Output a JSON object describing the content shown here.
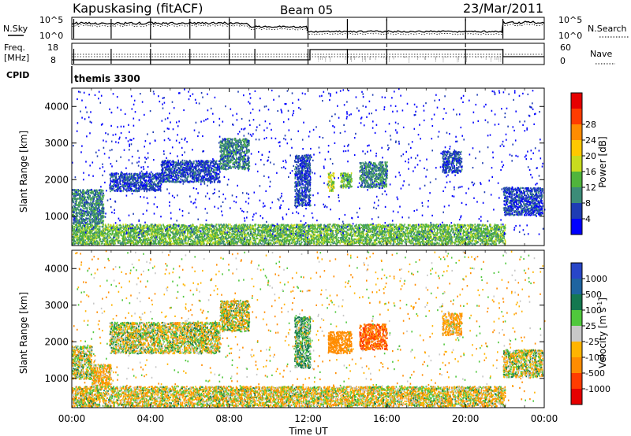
{
  "header": {
    "station": "Kapuskasing (fitACF)",
    "beam": "Beam 05",
    "date": "23/Mar/2011"
  },
  "time_axis": {
    "label": "Time UT",
    "ticks": [
      "00:00",
      "04:00",
      "08:00",
      "12:00",
      "16:00",
      "20:00",
      "00:00"
    ]
  },
  "top_panels": {
    "nsky_label": "N.Sky",
    "nsearch_label": "N.Search",
    "noise_ticks_left": [
      "10^5",
      "10^0"
    ],
    "noise_ticks_right": [
      "10^5",
      "10^0"
    ],
    "freq_label_1": "Freq.",
    "freq_label_2": "[MHz]",
    "freq_ticks": [
      "18",
      "8"
    ],
    "nave_label": "Nave",
    "nave_ticks": [
      "60",
      "0"
    ],
    "cpid_label": "CPID",
    "cpid_value": "themis 3300"
  },
  "chart_data": [
    {
      "type": "heatmap",
      "name": "Power",
      "ylabel": "Slant Range [km]",
      "xlabel": "",
      "yticks": [
        "1000",
        "2000",
        "3000",
        "4000"
      ],
      "ylim": [
        200,
        4500
      ],
      "xlim_hours": [
        0,
        24
      ],
      "colorbar": {
        "label": "Power [dB]",
        "ticks": [
          "4",
          "8",
          "12",
          "16",
          "20",
          "24",
          "28"
        ],
        "colors": [
          "#0000ff",
          "#1e3cb4",
          "#3c8c78",
          "#50b43c",
          "#c8dc1e",
          "#ffc800",
          "#ff8c00",
          "#ff3c00",
          "#e60000"
        ]
      },
      "scatter_regions": [
        {
          "t": [
            0.0,
            1.6
          ],
          "r": [
            800,
            1750
          ],
          "power": 12
        },
        {
          "t": [
            0.0,
            22.0
          ],
          "r": [
            250,
            800
          ],
          "power": 14
        },
        {
          "t": [
            1.9,
            4.5
          ],
          "r": [
            1700,
            2200
          ],
          "power": 8
        },
        {
          "t": [
            4.5,
            7.5
          ],
          "r": [
            1950,
            2550
          ],
          "power": 8
        },
        {
          "t": [
            7.5,
            9.0
          ],
          "r": [
            2300,
            3150
          ],
          "power": 10
        },
        {
          "t": [
            11.3,
            12.1
          ],
          "r": [
            1300,
            2700
          ],
          "power": 9
        },
        {
          "t": [
            13.0,
            13.3
          ],
          "r": [
            1700,
            2200
          ],
          "power": 18
        },
        {
          "t": [
            13.6,
            14.2
          ],
          "r": [
            1800,
            2200
          ],
          "power": 14
        },
        {
          "t": [
            14.6,
            16.0
          ],
          "r": [
            1800,
            2500
          ],
          "power": 12
        },
        {
          "t": [
            18.8,
            19.8
          ],
          "r": [
            2200,
            2800
          ],
          "power": 6
        },
        {
          "t": [
            21.9,
            23.9
          ],
          "r": [
            1050,
            1800
          ],
          "power": 8
        },
        {
          "t": [
            0.0,
            24.0
          ],
          "r": [
            400,
            4500
          ],
          "power": 5
        }
      ]
    },
    {
      "type": "heatmap",
      "name": "Velocity",
      "ylabel": "Slant Range [km]",
      "xlabel": "Time UT",
      "yticks": [
        "1000",
        "2000",
        "3000",
        "4000"
      ],
      "ylim": [
        200,
        4500
      ],
      "xlim_hours": [
        0,
        24
      ],
      "colorbar": {
        "label": "Velocity [m s^-1]",
        "ticks": [
          "1000",
          "500",
          "100",
          "25",
          "-25",
          "-100",
          "-500",
          "-1000"
        ],
        "colors": [
          "#2846c8",
          "#1e64a0",
          "#147850",
          "#50c83c",
          "#c8c8c8",
          "#ffb400",
          "#ff8c00",
          "#ff3c00",
          "#e60000"
        ]
      },
      "scatter_regions": [
        {
          "t": [
            0.0,
            1.0
          ],
          "r": [
            1000,
            1900
          ],
          "velocity": 0
        },
        {
          "t": [
            1.0,
            2.0
          ],
          "r": [
            800,
            1400
          ],
          "velocity": -100
        },
        {
          "t": [
            0.0,
            22.0
          ],
          "r": [
            250,
            800
          ],
          "velocity": -25
        },
        {
          "t": [
            1.9,
            7.5
          ],
          "r": [
            1700,
            2550
          ],
          "velocity": 0
        },
        {
          "t": [
            7.5,
            9.0
          ],
          "r": [
            2300,
            3150
          ],
          "velocity": 0
        },
        {
          "t": [
            11.3,
            12.1
          ],
          "r": [
            1300,
            2700
          ],
          "velocity": 100
        },
        {
          "t": [
            13.0,
            14.2
          ],
          "r": [
            1700,
            2300
          ],
          "velocity": -300
        },
        {
          "t": [
            14.6,
            16.0
          ],
          "r": [
            1800,
            2500
          ],
          "velocity": -500
        },
        {
          "t": [
            18.8,
            19.8
          ],
          "r": [
            2200,
            2800
          ],
          "velocity": -100
        },
        {
          "t": [
            21.9,
            23.9
          ],
          "r": [
            1050,
            1800
          ],
          "velocity": 0
        },
        {
          "t": [
            0.0,
            24.0
          ],
          "r": [
            400,
            4500
          ],
          "velocity": -50
        }
      ]
    }
  ]
}
